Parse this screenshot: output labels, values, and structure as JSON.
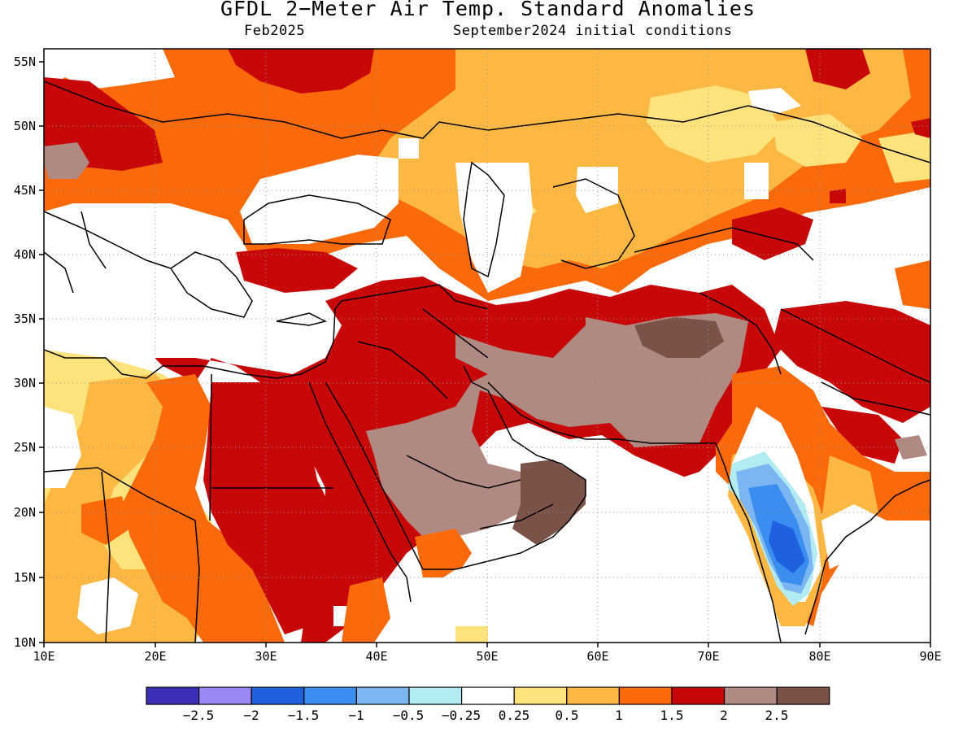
{
  "title": "GFDL 2−Meter Air Temp. Standard Anomalies",
  "subtitle_left": "Feb2025",
  "subtitle_right": "September2024 initial conditions",
  "lat_ticks": [
    "55N",
    "50N",
    "45N",
    "40N",
    "35N",
    "30N",
    "25N",
    "20N",
    "15N",
    "10N"
  ],
  "lon_ticks": [
    "10E",
    "20E",
    "30E",
    "40E",
    "50E",
    "60E",
    "70E",
    "80E",
    "90E"
  ],
  "colorbar": {
    "colors": [
      "#3a2fb5",
      "#9a86f5",
      "#1e60e0",
      "#3b8ef0",
      "#7bb5f2",
      "#b2ecf2",
      "#ffffff",
      "#fee27c",
      "#fcb843",
      "#fa6a0a",
      "#c80808",
      "#b08a82",
      "#7a5248"
    ],
    "labels": [
      "−2.5",
      "−2",
      "−1.5",
      "−1",
      "−0.5",
      "−0.25",
      "0.25",
      "0.5",
      "1",
      "1.5",
      "2",
      "2.5"
    ]
  },
  "legend_colors": {
    "orange_light": "#fee27c",
    "orange": "#fcb843",
    "orange_dark": "#fa6a0a",
    "red": "#c80808",
    "brown_light": "#b08a82",
    "brown_dark": "#7a5248",
    "blue_light": "#b2ecf2",
    "blue": "#3b8ef0",
    "blue_dark": "#1e60e0"
  }
}
